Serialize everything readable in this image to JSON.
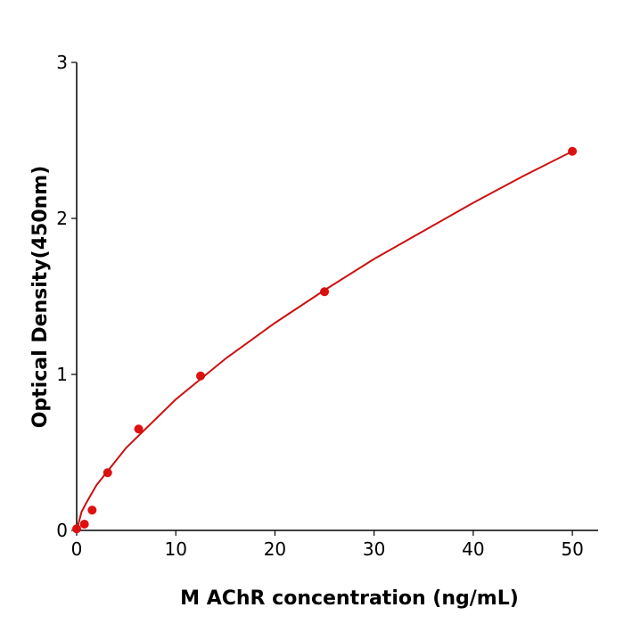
{
  "chart_data": {
    "type": "scatter",
    "xlabel": "M  AChR concentration (ng/mL)",
    "ylabel": "Optical Density(450nm)",
    "xlim": [
      0,
      52.6
    ],
    "xticks": [
      0,
      10,
      20,
      30,
      40,
      50
    ],
    "ylim": [
      0,
      3
    ],
    "yticks": [
      0,
      1,
      2,
      3
    ],
    "grid": false,
    "series": [
      {
        "type": "scatter",
        "color": "#e01010",
        "x": [
          0,
          0.78,
          1.56,
          3.125,
          6.25,
          12.5,
          25,
          50
        ],
        "values": [
          0.01,
          0.04,
          0.13,
          0.37,
          0.65,
          0.99,
          1.53,
          2.43
        ]
      },
      {
        "type": "line",
        "color": "#cc1111",
        "x": [
          0,
          0.5,
          1,
          2,
          5,
          10,
          15,
          20,
          25,
          30,
          35,
          40,
          45,
          50
        ],
        "values": [
          0,
          0.12,
          0.18,
          0.29,
          0.53,
          0.84,
          1.1,
          1.33,
          1.54,
          1.74,
          1.92,
          2.1,
          2.27,
          2.43
        ]
      }
    ]
  }
}
